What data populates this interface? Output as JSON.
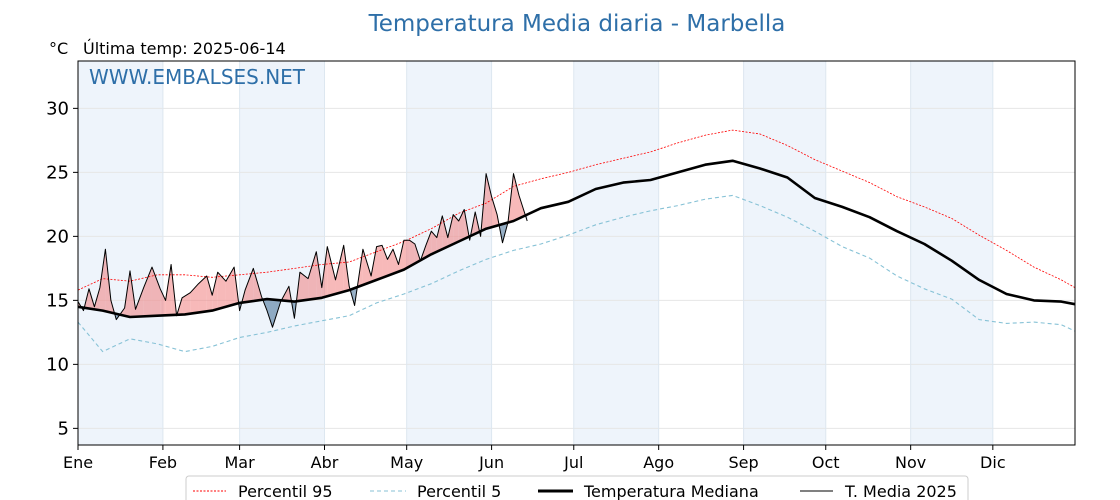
{
  "chart_data": {
    "type": "line",
    "title": "Temperatura Media diaria - Marbella",
    "unit_label": "°C",
    "last_temp_label": "Última temp: 2025-06-14",
    "watermark": "WWW.EMBALSES.NET",
    "ylim": [
      3.7,
      33.7
    ],
    "yticks": [
      5,
      10,
      15,
      20,
      25,
      30
    ],
    "x_range_days": [
      1,
      365
    ],
    "months": [
      {
        "label": "Ene",
        "day": 1
      },
      {
        "label": "Feb",
        "day": 32
      },
      {
        "label": "Mar",
        "day": 60
      },
      {
        "label": "Abr",
        "day": 91
      },
      {
        "label": "May",
        "day": 121
      },
      {
        "label": "Jun",
        "day": 152
      },
      {
        "label": "Jul",
        "day": 182
      },
      {
        "label": "Ago",
        "day": 213
      },
      {
        "label": "Sep",
        "day": 244
      },
      {
        "label": "Oct",
        "day": 274
      },
      {
        "label": "Nov",
        "day": 305
      },
      {
        "label": "Dic",
        "day": 335
      }
    ],
    "grid": true,
    "legend_position": "bottom",
    "colors": {
      "title": "#2e6fa8",
      "watermark": "#2e6fa8",
      "p95": "#ff0000",
      "p5": "#87c2d6",
      "median": "#000000",
      "current": "#000000",
      "fill_above": "#f08080",
      "fill_below": "#3f6e96",
      "band": "#eef4fb"
    },
    "series": [
      {
        "key": "p95",
        "name": "Percentil 95",
        "x": [
          1,
          10,
          20,
          30,
          40,
          50,
          60,
          70,
          80,
          90,
          100,
          110,
          120,
          130,
          140,
          150,
          160,
          170,
          180,
          190,
          200,
          210,
          220,
          230,
          240,
          250,
          260,
          270,
          280,
          290,
          300,
          310,
          320,
          330,
          340,
          350,
          360,
          365
        ],
        "y": [
          15.8,
          16.7,
          16.5,
          17.0,
          17.0,
          16.8,
          17.0,
          17.2,
          17.5,
          17.8,
          18.0,
          18.8,
          19.6,
          20.6,
          21.8,
          22.6,
          23.9,
          24.5,
          25.0,
          25.6,
          26.1,
          26.6,
          27.3,
          27.9,
          28.3,
          28.0,
          27.1,
          26.0,
          25.1,
          24.2,
          23.1,
          22.3,
          21.4,
          20.1,
          18.9,
          17.6,
          16.6,
          16.0
        ]
      },
      {
        "key": "p5",
        "name": "Percentil 5",
        "x": [
          1,
          10,
          20,
          30,
          40,
          50,
          60,
          70,
          80,
          90,
          100,
          110,
          120,
          130,
          140,
          150,
          160,
          170,
          180,
          190,
          200,
          210,
          220,
          230,
          240,
          250,
          260,
          270,
          280,
          290,
          300,
          310,
          320,
          330,
          340,
          350,
          360,
          365
        ],
        "y": [
          13.3,
          11.0,
          12.0,
          11.6,
          11.0,
          11.4,
          12.1,
          12.5,
          13.0,
          13.4,
          13.8,
          14.8,
          15.5,
          16.3,
          17.3,
          18.2,
          18.9,
          19.4,
          20.1,
          20.9,
          21.5,
          22.0,
          22.4,
          22.9,
          23.2,
          22.4,
          21.5,
          20.4,
          19.2,
          18.3,
          16.9,
          15.9,
          15.1,
          13.5,
          13.2,
          13.3,
          13.1,
          12.6
        ]
      },
      {
        "key": "median",
        "name": "Temperatura Mediana",
        "x": [
          1,
          10,
          20,
          30,
          40,
          50,
          60,
          70,
          80,
          90,
          100,
          110,
          120,
          130,
          140,
          150,
          160,
          170,
          180,
          190,
          200,
          210,
          220,
          230,
          240,
          250,
          260,
          270,
          280,
          290,
          300,
          310,
          320,
          330,
          340,
          350,
          360,
          365
        ],
        "y": [
          14.5,
          14.2,
          13.7,
          13.8,
          13.9,
          14.2,
          14.8,
          15.1,
          14.9,
          15.2,
          15.8,
          16.6,
          17.4,
          18.6,
          19.6,
          20.6,
          21.2,
          22.2,
          22.7,
          23.7,
          24.2,
          24.4,
          25.0,
          25.6,
          25.9,
          25.3,
          24.6,
          23.0,
          22.3,
          21.5,
          20.4,
          19.4,
          18.1,
          16.6,
          15.5,
          15.0,
          14.9,
          14.7
        ]
      },
      {
        "key": "current",
        "name": "T. Media 2025",
        "x": [
          1,
          3,
          5,
          7,
          9,
          11,
          13,
          15,
          18,
          20,
          22,
          25,
          28,
          31,
          33,
          35,
          37,
          39,
          42,
          45,
          48,
          50,
          52,
          55,
          58,
          60,
          62,
          65,
          68,
          70,
          72,
          75,
          78,
          80,
          82,
          85,
          88,
          90,
          92,
          95,
          98,
          100,
          102,
          105,
          108,
          110,
          112,
          114,
          116,
          118,
          120,
          122,
          124,
          126,
          128,
          130,
          132,
          134,
          136,
          138,
          140,
          142,
          144,
          146,
          148,
          150,
          152,
          154,
          156,
          158,
          160,
          162,
          165
        ],
        "y": [
          14.9,
          14.2,
          15.9,
          14.5,
          16.0,
          19.0,
          15.0,
          13.5,
          14.4,
          17.3,
          14.3,
          16.0,
          17.6,
          15.9,
          15.0,
          17.8,
          13.8,
          15.2,
          15.6,
          16.3,
          16.9,
          15.4,
          17.2,
          16.5,
          17.6,
          14.2,
          15.8,
          17.5,
          15.3,
          14.2,
          12.9,
          14.9,
          16.1,
          13.6,
          17.2,
          16.7,
          18.8,
          16.0,
          19.2,
          16.6,
          19.3,
          16.1,
          14.6,
          19.0,
          16.9,
          19.2,
          19.3,
          18.2,
          19.0,
          17.8,
          19.7,
          19.7,
          19.4,
          18.1,
          19.3,
          20.4,
          19.9,
          21.6,
          19.9,
          21.7,
          21.2,
          22.1,
          19.7,
          21.9,
          20.0,
          24.9,
          23.1,
          21.7,
          19.5,
          21.1,
          24.9,
          23.2,
          21.2
        ]
      }
    ]
  }
}
